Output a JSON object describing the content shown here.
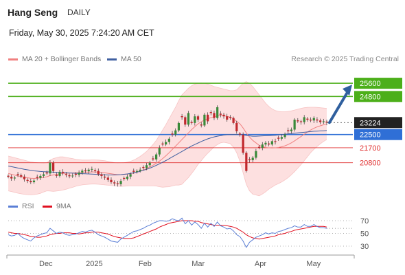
{
  "header": {
    "title": "Hang Seng",
    "period": "DAILY",
    "datetime": "Friday, May 30, 2025 7:24:20 AM CET",
    "credit": "Research © 2025 Trading Central"
  },
  "legend_top": [
    {
      "label": "MA 20 + Bollinger Bands",
      "color": "#f08080"
    },
    {
      "label": "MA 50",
      "color": "#3f5fa0"
    }
  ],
  "legend_rsi": [
    {
      "label": "RSI",
      "color": "#5b7fd6"
    },
    {
      "label": "9MA",
      "color": "#e01020"
    }
  ],
  "chart_data": [
    {
      "type": "line",
      "name": "price",
      "x_ticks": [
        "Dec",
        "2025",
        "Feb",
        "Mar",
        "Apr",
        "May"
      ],
      "ylim": [
        19000,
        26600
      ],
      "current_price": 23224,
      "levels": [
        {
          "value": 25600,
          "label": "25600",
          "kind": "resistance",
          "color": "#4caf1a"
        },
        {
          "value": 24800,
          "label": "24800",
          "kind": "resistance",
          "color": "#4caf1a"
        },
        {
          "value": 22500,
          "label": "22500",
          "kind": "pivot",
          "color": "#2f6fd6"
        },
        {
          "value": 21700,
          "label": "21700",
          "kind": "support",
          "color": "#e03030"
        },
        {
          "value": 20800,
          "label": "20800",
          "kind": "support",
          "color": "#e03030"
        }
      ],
      "close": [
        19950,
        19850,
        19900,
        20050,
        19960,
        19800,
        19700,
        19620,
        19720,
        19880,
        20000,
        20100,
        20150,
        20800,
        20300,
        20000,
        20250,
        20180,
        20050,
        19980,
        20020,
        20070,
        20200,
        20320,
        20280,
        20380,
        20420,
        20300,
        20100,
        20000,
        19900,
        19760,
        19620,
        19550,
        19500,
        19700,
        19820,
        19960,
        20110,
        20250,
        20300,
        20380,
        20480,
        20650,
        20800,
        21000,
        21300,
        21700,
        21900,
        22050,
        22250,
        22500,
        22750,
        23200,
        23550,
        23100,
        23800,
        23200,
        23600,
        23400,
        23050,
        23700,
        23300,
        23800,
        23500,
        24150,
        23700,
        23600,
        23400,
        23500,
        23200,
        22700,
        22500,
        21400,
        20300,
        20950,
        21100,
        21500,
        21700,
        21900,
        22000,
        21900,
        22100,
        22050,
        22250,
        22350,
        22500,
        22700,
        22800,
        23400,
        23300,
        23250,
        23550,
        23400,
        23350,
        23500,
        23350,
        23250,
        23300,
        23224
      ],
      "ma20": [
        20150,
        20100,
        20050,
        20000,
        19960,
        19920,
        19890,
        19860,
        19850,
        19860,
        19880,
        19910,
        19950,
        20020,
        20060,
        20090,
        20130,
        20150,
        20160,
        20170,
        20180,
        20190,
        20200,
        20210,
        20220,
        20230,
        20240,
        20240,
        20230,
        20210,
        20190,
        20160,
        20130,
        20100,
        20080,
        20080,
        20090,
        20110,
        20140,
        20180,
        20230,
        20290,
        20360,
        20440,
        20540,
        20650,
        20770,
        20900,
        21050,
        21220,
        21400,
        21600,
        21800,
        22000,
        22200,
        22400,
        22600,
        22800,
        22980,
        23150,
        23270,
        23380,
        23460,
        23520,
        23580,
        23620,
        23650,
        23640,
        23600,
        23550,
        23450,
        23300,
        23150,
        22900,
        22600,
        22350,
        22150,
        22000,
        21850,
        21780,
        21720,
        21700,
        21690,
        21700,
        21720,
        21760,
        21820,
        21900,
        22000,
        22120,
        22250,
        22380,
        22520,
        22650,
        22780,
        22880,
        22960,
        23030,
        23090,
        23140
      ],
      "ma50": [
        20600,
        20560,
        20520,
        20480,
        20440,
        20400,
        20370,
        20340,
        20310,
        20290,
        20270,
        20260,
        20250,
        20240,
        20230,
        20220,
        20210,
        20200,
        20190,
        20180,
        20170,
        20160,
        20150,
        20140,
        20130,
        20120,
        20110,
        20100,
        20090,
        20080,
        20070,
        20060,
        20060,
        20060,
        20070,
        20080,
        20100,
        20120,
        20150,
        20190,
        20230,
        20280,
        20340,
        20400,
        20470,
        20550,
        20640,
        20730,
        20830,
        20930,
        21040,
        21150,
        21260,
        21370,
        21480,
        21590,
        21700,
        21810,
        21900,
        21990,
        22080,
        22160,
        22240,
        22300,
        22360,
        22400,
        22440,
        22470,
        22490,
        22500,
        22510,
        22510,
        22500,
        22480,
        22450,
        22420,
        22400,
        22400,
        22410,
        22420,
        22430,
        22440,
        22450,
        22460,
        22480,
        22500,
        22520,
        22540,
        22560,
        22580,
        22600,
        22620,
        22640,
        22660,
        22680,
        22700,
        22710,
        22720,
        22730,
        22740
      ],
      "bb_upper": [
        21200,
        21150,
        21100,
        21050,
        21000,
        20950,
        20900,
        20850,
        20820,
        20800,
        20780,
        20770,
        20800,
        20950,
        21050,
        21100,
        21150,
        21150,
        21120,
        21080,
        21050,
        21000,
        20980,
        20960,
        20960,
        20960,
        20970,
        20970,
        20960,
        20940,
        20920,
        20880,
        20840,
        20800,
        20780,
        20790,
        20800,
        20830,
        20880,
        20960,
        21060,
        21180,
        21320,
        21480,
        21680,
        21900,
        22150,
        22450,
        22780,
        23100,
        23450,
        23800,
        24150,
        24550,
        24900,
        25100,
        25300,
        25450,
        25550,
        25600,
        25620,
        25600,
        25550,
        25480,
        25400,
        25350,
        25300,
        25250,
        25200,
        25150,
        25150,
        25200,
        25400,
        25600,
        25700,
        25600,
        25400,
        25150,
        24900,
        24650,
        24400,
        24200,
        24050,
        23950,
        23900,
        23880,
        23880,
        23900,
        23930,
        23980,
        24030,
        24080,
        24120,
        24140,
        24150,
        24150,
        24140,
        24120,
        24100,
        24080
      ],
      "bb_lower": [
        19100,
        19060,
        19010,
        18960,
        18920,
        18890,
        18870,
        18860,
        18870,
        18900,
        18950,
        19030,
        19100,
        19090,
        19070,
        19090,
        19110,
        19150,
        19200,
        19260,
        19310,
        19380,
        19420,
        19460,
        19480,
        19500,
        19510,
        19510,
        19500,
        19480,
        19460,
        19440,
        19420,
        19400,
        19380,
        19370,
        19380,
        19390,
        19400,
        19400,
        19400,
        19400,
        19400,
        19400,
        19400,
        19400,
        19390,
        19350,
        19320,
        19340,
        19350,
        19400,
        19450,
        19450,
        19500,
        19700,
        19900,
        20150,
        20400,
        20700,
        20920,
        21160,
        21370,
        21560,
        21760,
        21890,
        22000,
        22030,
        22000,
        21950,
        21750,
        21400,
        20900,
        20200,
        19500,
        19100,
        18900,
        18850,
        18800,
        18910,
        19040,
        19200,
        19330,
        19450,
        19540,
        19640,
        19760,
        19900,
        20070,
        20260,
        20470,
        20680,
        20920,
        21160,
        21410,
        21610,
        21780,
        21940,
        22080,
        22200
      ]
    },
    {
      "type": "line",
      "name": "RSI",
      "y_ticks": [
        70,
        50,
        30
      ],
      "ylim": [
        20,
        80
      ],
      "rsi": [
        48,
        46,
        47,
        50,
        45,
        42,
        40,
        38,
        43,
        46,
        48,
        50,
        51,
        58,
        54,
        50,
        52,
        51,
        48,
        47,
        48,
        49,
        51,
        53,
        52,
        54,
        55,
        52,
        48,
        46,
        44,
        41,
        38,
        37,
        36,
        41,
        44,
        47,
        50,
        53,
        54,
        56,
        58,
        61,
        63,
        66,
        68,
        70,
        70,
        69,
        70,
        73,
        71,
        70,
        74,
        65,
        70,
        63,
        68,
        64,
        58,
        66,
        60,
        66,
        61,
        68,
        62,
        60,
        57,
        58,
        54,
        48,
        45,
        38,
        28,
        36,
        40,
        44,
        46,
        48,
        51,
        49,
        51,
        50,
        53,
        54,
        56,
        58,
        59,
        62,
        60,
        60,
        64,
        61,
        61,
        64,
        61,
        59,
        59,
        58
      ],
      "ma9": [
        52,
        51,
        50,
        50,
        49,
        48,
        47,
        45,
        45,
        44,
        44,
        45,
        46,
        48,
        49,
        50,
        50,
        51,
        51,
        51,
        50,
        50,
        49,
        50,
        51,
        51,
        52,
        52,
        52,
        51,
        50,
        49,
        47,
        45,
        44,
        43,
        42,
        42,
        42,
        43,
        45,
        47,
        49,
        51,
        53,
        55,
        57,
        60,
        62,
        64,
        66,
        67,
        68,
        69,
        70,
        70,
        70,
        70,
        69,
        69,
        67,
        66,
        65,
        64,
        63,
        63,
        63,
        63,
        62,
        61,
        60,
        58,
        55,
        52,
        48,
        45,
        43,
        42,
        41,
        42,
        43,
        44,
        45,
        46,
        48,
        49,
        50,
        52,
        53,
        55,
        56,
        57,
        58,
        59,
        60,
        61,
        61,
        61,
        61,
        60
      ]
    }
  ]
}
